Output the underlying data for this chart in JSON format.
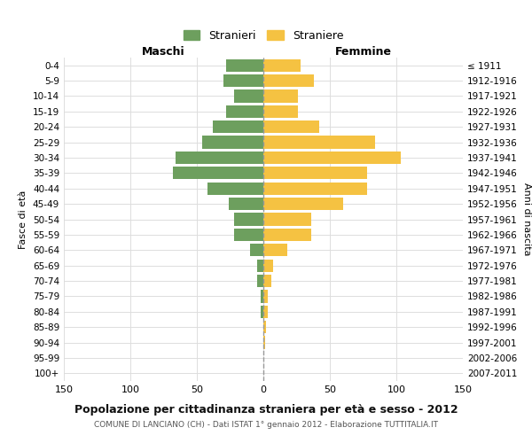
{
  "age_groups": [
    "0-4",
    "5-9",
    "10-14",
    "15-19",
    "20-24",
    "25-29",
    "30-34",
    "35-39",
    "40-44",
    "45-49",
    "50-54",
    "55-59",
    "60-64",
    "65-69",
    "70-74",
    "75-79",
    "80-84",
    "85-89",
    "90-94",
    "95-99",
    "100+"
  ],
  "birth_years": [
    "2007-2011",
    "2002-2006",
    "1997-2001",
    "1992-1996",
    "1987-1991",
    "1982-1986",
    "1977-1981",
    "1972-1976",
    "1967-1971",
    "1962-1966",
    "1957-1961",
    "1952-1956",
    "1947-1951",
    "1942-1946",
    "1937-1941",
    "1932-1936",
    "1927-1931",
    "1922-1926",
    "1917-1921",
    "1912-1916",
    "≤ 1911"
  ],
  "maschi": [
    28,
    30,
    22,
    28,
    38,
    46,
    66,
    68,
    42,
    26,
    22,
    22,
    10,
    5,
    5,
    2,
    2,
    0,
    0,
    0,
    0
  ],
  "femmine": [
    28,
    38,
    26,
    26,
    42,
    84,
    103,
    78,
    78,
    60,
    36,
    36,
    18,
    7,
    6,
    3,
    3,
    2,
    1,
    0,
    0
  ],
  "male_color": "#6d9f5e",
  "female_color": "#f5c242",
  "center_line_color": "#999999",
  "grid_color": "#dddddd",
  "background_color": "#ffffff",
  "title": "Popolazione per cittadinanza straniera per età e sesso - 2012",
  "subtitle": "COMUNE DI LANCIANO (CH) - Dati ISTAT 1° gennaio 2012 - Elaborazione TUTTITALIA.IT",
  "xlabel_left": "Maschi",
  "xlabel_right": "Femmine",
  "ylabel_left": "Fasce di età",
  "ylabel_right": "Anni di nascita",
  "legend_male": "Stranieri",
  "legend_female": "Straniere",
  "xlim": 150
}
